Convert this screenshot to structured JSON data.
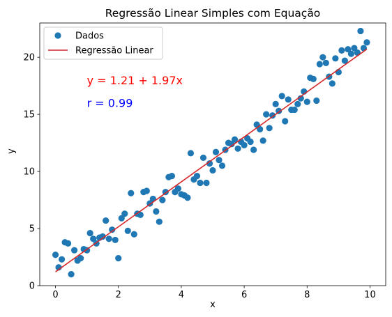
{
  "chart_data": {
    "type": "scatter",
    "title": "Regressão Linear Simples com Equação",
    "xlabel": "x",
    "ylabel": "y",
    "xlim": [
      -0.5,
      10.5
    ],
    "ylim": [
      0,
      23
    ],
    "xticks": [
      0,
      2,
      4,
      6,
      8,
      10
    ],
    "yticks": [
      0,
      5,
      10,
      15,
      20
    ],
    "grid": false,
    "legend_position": "top-left",
    "colors": {
      "points": "#1f77b4",
      "line": "#d62728",
      "equation": "#ff0000",
      "correlation": "#0000ff"
    },
    "series": [
      {
        "name": "Dados",
        "kind": "scatter",
        "points": [
          [
            0.0,
            2.7
          ],
          [
            0.1,
            1.6
          ],
          [
            0.2,
            2.3
          ],
          [
            0.3,
            3.8
          ],
          [
            0.4,
            3.7
          ],
          [
            0.5,
            1.0
          ],
          [
            0.6,
            3.1
          ],
          [
            0.7,
            2.2
          ],
          [
            0.8,
            2.4
          ],
          [
            0.9,
            3.2
          ],
          [
            1.0,
            3.1
          ],
          [
            1.1,
            4.6
          ],
          [
            1.2,
            4.1
          ],
          [
            1.3,
            3.7
          ],
          [
            1.4,
            4.2
          ],
          [
            1.5,
            4.3
          ],
          [
            1.6,
            5.7
          ],
          [
            1.7,
            4.1
          ],
          [
            1.8,
            4.9
          ],
          [
            1.9,
            4.0
          ],
          [
            2.0,
            2.4
          ],
          [
            2.1,
            5.9
          ],
          [
            2.2,
            6.3
          ],
          [
            2.3,
            4.8
          ],
          [
            2.4,
            8.1
          ],
          [
            2.5,
            4.5
          ],
          [
            2.6,
            6.3
          ],
          [
            2.7,
            6.2
          ],
          [
            2.8,
            8.2
          ],
          [
            2.9,
            8.3
          ],
          [
            3.0,
            7.2
          ],
          [
            3.1,
            7.6
          ],
          [
            3.2,
            6.5
          ],
          [
            3.3,
            5.6
          ],
          [
            3.4,
            7.5
          ],
          [
            3.5,
            8.2
          ],
          [
            3.6,
            9.5
          ],
          [
            3.7,
            9.6
          ],
          [
            3.8,
            8.2
          ],
          [
            3.9,
            8.5
          ],
          [
            4.0,
            8.0
          ],
          [
            4.1,
            7.9
          ],
          [
            4.2,
            7.7
          ],
          [
            4.3,
            11.6
          ],
          [
            4.4,
            9.3
          ],
          [
            4.5,
            9.6
          ],
          [
            4.6,
            9.0
          ],
          [
            4.7,
            11.2
          ],
          [
            4.8,
            9.0
          ],
          [
            4.9,
            10.7
          ],
          [
            5.0,
            10.1
          ],
          [
            5.1,
            11.7
          ],
          [
            5.2,
            11.0
          ],
          [
            5.3,
            10.5
          ],
          [
            5.4,
            11.9
          ],
          [
            5.5,
            12.5
          ],
          [
            5.6,
            12.4
          ],
          [
            5.7,
            12.8
          ],
          [
            5.8,
            12.0
          ],
          [
            5.9,
            12.6
          ],
          [
            6.0,
            12.3
          ],
          [
            6.1,
            12.9
          ],
          [
            6.2,
            12.6
          ],
          [
            6.3,
            11.9
          ],
          [
            6.4,
            14.1
          ],
          [
            6.5,
            13.7
          ],
          [
            6.6,
            12.7
          ],
          [
            6.7,
            15.0
          ],
          [
            6.8,
            13.8
          ],
          [
            6.9,
            14.9
          ],
          [
            7.0,
            15.9
          ],
          [
            7.1,
            15.3
          ],
          [
            7.2,
            16.6
          ],
          [
            7.3,
            14.4
          ],
          [
            7.4,
            16.3
          ],
          [
            7.5,
            15.4
          ],
          [
            7.6,
            15.4
          ],
          [
            7.7,
            15.9
          ],
          [
            7.8,
            16.4
          ],
          [
            7.9,
            17.0
          ],
          [
            8.0,
            16.1
          ],
          [
            8.1,
            18.2
          ],
          [
            8.2,
            18.1
          ],
          [
            8.3,
            16.2
          ],
          [
            8.4,
            19.4
          ],
          [
            8.5,
            20.0
          ],
          [
            8.6,
            19.5
          ],
          [
            8.7,
            18.3
          ],
          [
            8.8,
            17.7
          ],
          [
            8.9,
            19.9
          ],
          [
            9.0,
            18.7
          ],
          [
            9.1,
            20.6
          ],
          [
            9.2,
            19.7
          ],
          [
            9.3,
            20.7
          ],
          [
            9.4,
            20.3
          ],
          [
            9.5,
            20.8
          ],
          [
            9.6,
            20.4
          ],
          [
            9.7,
            22.3
          ],
          [
            9.8,
            20.8
          ],
          [
            9.9,
            21.3
          ]
        ]
      },
      {
        "name": "Regressão Linear",
        "kind": "line",
        "points": [
          [
            0.0,
            1.21
          ],
          [
            9.9,
            20.71
          ]
        ]
      }
    ],
    "annotations": [
      {
        "text": "y = 1.21 + 1.97x",
        "x": 1.0,
        "y": 18.0,
        "color_key": "equation"
      },
      {
        "text": "r = 0.99",
        "x": 1.0,
        "y": 16.0,
        "color_key": "correlation"
      }
    ]
  }
}
